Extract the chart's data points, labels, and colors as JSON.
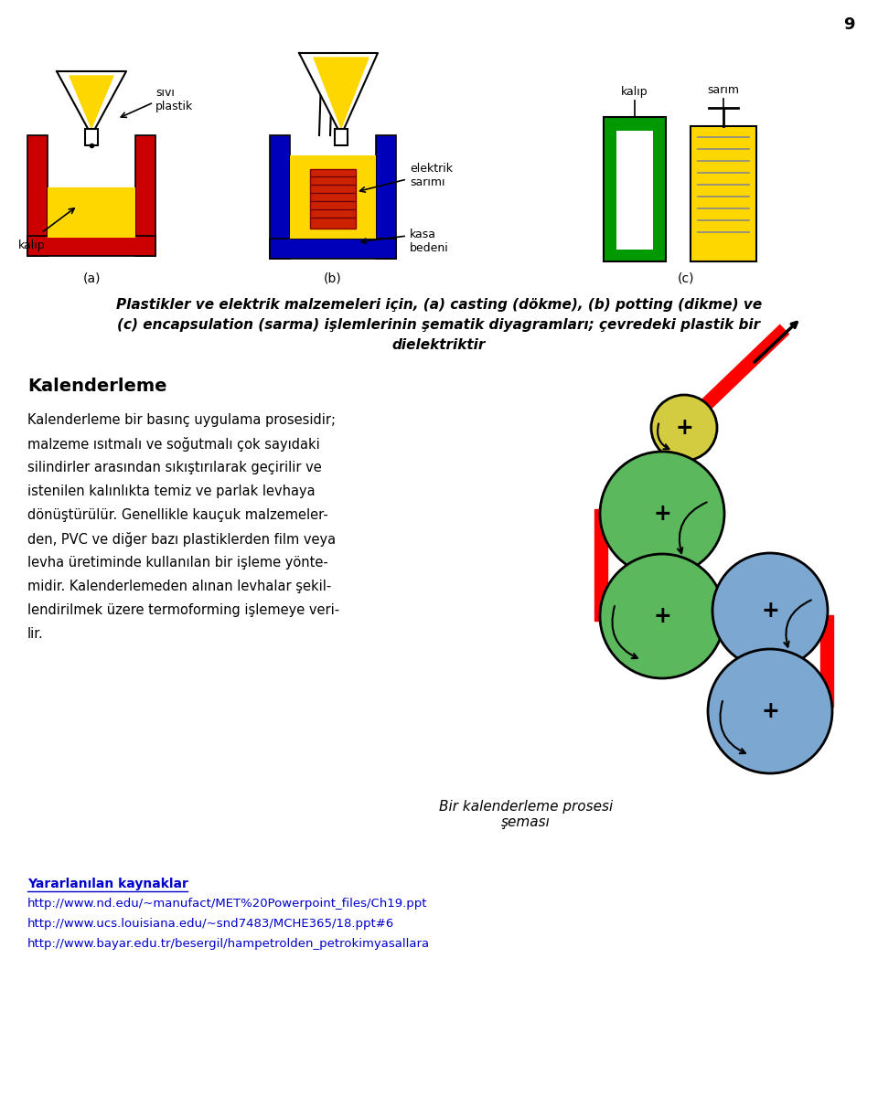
{
  "page_number": "9",
  "background_color": "#ffffff",
  "text_color": "#000000",
  "section_heading": "Kalenderleme",
  "caption_text": "Bir kalenderleme prosesi\nşeması",
  "ref_heading": "Yararlanılan kaynaklar",
  "ref1": "http://www.nd.edu/~manufact/MET%20Powerpoint_files/Ch19.ppt",
  "ref2": "http://www.ucs.louisiana.edu/~snd7483/MCHE365/18.ppt#6",
  "ref3": "http://www.bayar.edu.tr/besergil/hampetrolden_petrokimyasallara",
  "label_a": "(a)",
  "label_b": "(b)",
  "label_c": "(c)",
  "label_sivi_plastik": "sıvı\nplastik",
  "label_kalip_a": "kalıp",
  "label_elektrik_sarimi": "elektrik\nsarımı",
  "label_kasa_bedeni": "kasa\nbedeni",
  "label_kalip_c": "kalıp",
  "label_sarim": "sarım",
  "body_lines": [
    "Kalenderleme bir basınç uygulama prosesidir;",
    "malzeme ısıtmalı ve soğutmalı çok sayıdaki",
    "silindirler arasından sıkıştırılarak geçirilir ve",
    "istenilen kalınlıkta temiz ve parlak levhaya",
    "dönüştürülür. Genellikle kauçuk malzemeler-",
    "den, PVC ve diğer bazı plastiklerden film veya",
    "levha üretiminde kullanılan bir işleme yönte-",
    "midir. Kalenderlemeden alınan levhalar şekil-",
    "lendirilmek üzere termoforming işlemeye veri-",
    "lir."
  ],
  "title_line1": "Plastikler ve elektrik malzemeleri için, (a) casting (dökme), (b) potting (dikme) ve",
  "title_line2": "(c) encapsulation (sarma) işlemlerinin şematik diyagramları; çevredeki plastik bir",
  "title_line3": "dielektriktir"
}
